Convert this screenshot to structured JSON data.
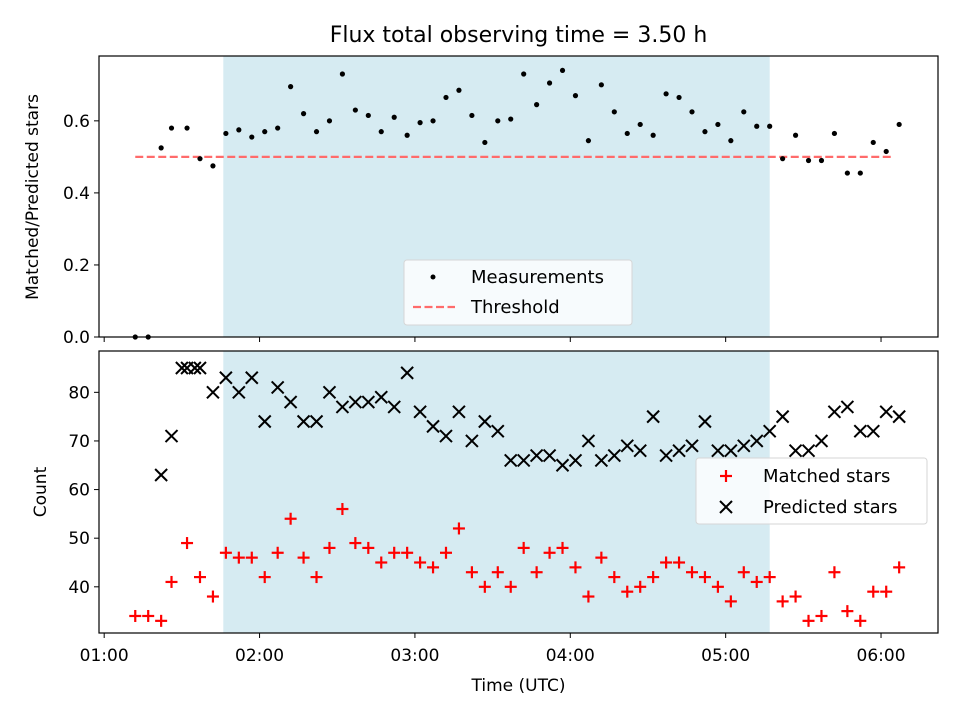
{
  "chart_data": [
    {
      "type": "scatter",
      "title": "Flux total observing time = 3.50 h",
      "ylabel": "Matched/Predicted stars",
      "xlabel": "",
      "xlim": [
        "00:58",
        "06:22"
      ],
      "ylim": [
        0,
        0.78
      ],
      "yticks": [
        "0.0",
        "0.2",
        "0.4",
        "0.6"
      ],
      "xticks": [
        "01:00",
        "02:00",
        "03:00",
        "04:00",
        "05:00",
        "06:00"
      ],
      "show_xtick_labels": false,
      "grid": false,
      "legend_position": "bottom-center",
      "shaded_interval": {
        "start": "01:46",
        "end": "05:17",
        "color": "#add8e6"
      },
      "threshold": {
        "name": "Threshold",
        "value": 0.5,
        "x_start": "01:12",
        "x_end": "06:05",
        "color": "#ff6b6b"
      },
      "series": [
        {
          "name": "Measurements",
          "color": "#000000",
          "marker": "dot",
          "x": [
            "01:12",
            "01:17",
            "01:22",
            "01:26",
            "01:32",
            "01:37",
            "01:42",
            "01:47",
            "01:52",
            "01:57",
            "02:02",
            "02:07",
            "02:12",
            "02:17",
            "02:22",
            "02:27",
            "02:32",
            "02:37",
            "02:42",
            "02:47",
            "02:52",
            "02:57",
            "03:02",
            "03:07",
            "03:12",
            "03:17",
            "03:22",
            "03:27",
            "03:32",
            "03:37",
            "03:42",
            "03:47",
            "03:52",
            "03:57",
            "04:02",
            "04:07",
            "04:12",
            "04:17",
            "04:22",
            "04:27",
            "04:32",
            "04:37",
            "04:42",
            "04:47",
            "04:52",
            "04:57",
            "05:02",
            "05:07",
            "05:12",
            "05:17",
            "05:22",
            "05:27",
            "05:32",
            "05:37",
            "05:42",
            "05:47",
            "05:52",
            "05:57",
            "06:02",
            "06:07"
          ],
          "y": [
            0.0,
            0.0,
            0.525,
            0.58,
            0.58,
            0.495,
            0.475,
            0.565,
            0.575,
            0.555,
            0.57,
            0.58,
            0.695,
            0.62,
            0.57,
            0.6,
            0.73,
            0.63,
            0.615,
            0.57,
            0.61,
            0.56,
            0.595,
            0.6,
            0.665,
            0.685,
            0.615,
            0.54,
            0.6,
            0.605,
            0.73,
            0.645,
            0.705,
            0.74,
            0.67,
            0.545,
            0.7,
            0.625,
            0.565,
            0.59,
            0.56,
            0.675,
            0.665,
            0.625,
            0.57,
            0.59,
            0.545,
            0.625,
            0.585,
            0.585,
            0.495,
            0.56,
            0.49,
            0.49,
            0.565,
            0.455,
            0.455,
            0.54,
            0.515,
            0.59
          ]
        }
      ]
    },
    {
      "type": "scatter",
      "title": "",
      "ylabel": "Count",
      "xlabel": "Time (UTC)",
      "xlim": [
        "00:58",
        "06:22"
      ],
      "ylim": [
        30.5,
        88.5
      ],
      "yticks": [
        "40",
        "50",
        "60",
        "70",
        "80"
      ],
      "xticks": [
        "01:00",
        "02:00",
        "03:00",
        "04:00",
        "05:00",
        "06:00"
      ],
      "show_xtick_labels": true,
      "grid": false,
      "legend_position": "center-right",
      "shaded_interval": {
        "start": "01:46",
        "end": "05:17",
        "color": "#add8e6"
      },
      "series": [
        {
          "name": "Matched stars",
          "color": "#ff0000",
          "marker": "plus",
          "x": [
            "01:12",
            "01:17",
            "01:22",
            "01:26",
            "01:32",
            "01:37",
            "01:42",
            "01:47",
            "01:52",
            "01:57",
            "02:02",
            "02:07",
            "02:12",
            "02:17",
            "02:22",
            "02:27",
            "02:32",
            "02:37",
            "02:42",
            "02:47",
            "02:52",
            "02:57",
            "03:02",
            "03:07",
            "03:12",
            "03:17",
            "03:22",
            "03:27",
            "03:32",
            "03:37",
            "03:42",
            "03:47",
            "03:52",
            "03:57",
            "04:02",
            "04:07",
            "04:12",
            "04:17",
            "04:22",
            "04:27",
            "04:32",
            "04:37",
            "04:42",
            "04:47",
            "04:52",
            "04:57",
            "05:02",
            "05:07",
            "05:12",
            "05:17",
            "05:22",
            "05:27",
            "05:32",
            "05:37",
            "05:42",
            "05:47",
            "05:52",
            "05:57",
            "06:02",
            "06:07"
          ],
          "y": [
            34,
            34,
            33,
            41,
            49,
            42,
            38,
            47,
            46,
            46,
            42,
            47,
            54,
            46,
            42,
            48,
            56,
            49,
            48,
            45,
            47,
            47,
            45,
            44,
            47,
            52,
            43,
            40,
            43,
            40,
            48,
            43,
            47,
            48,
            44,
            38,
            46,
            42,
            39,
            40,
            42,
            45,
            45,
            43,
            42,
            40,
            37,
            43,
            41,
            42,
            37,
            38,
            33,
            34,
            43,
            35,
            33,
            39,
            39,
            44
          ]
        },
        {
          "name": "Predicted stars",
          "color": "#000000",
          "marker": "x",
          "x": [
            "01:22",
            "01:26",
            "01:32",
            "01:37",
            "01:42",
            "01:47",
            "01:52",
            "01:57",
            "02:02",
            "02:07",
            "02:12",
            "02:17",
            "02:22",
            "02:27",
            "02:32",
            "02:37",
            "02:42",
            "02:47",
            "02:52",
            "02:57",
            "03:02",
            "03:07",
            "03:12",
            "03:17",
            "03:22",
            "03:27",
            "03:32",
            "03:37",
            "03:42",
            "03:47",
            "03:52",
            "03:57",
            "04:02",
            "04:07",
            "04:12",
            "04:17",
            "04:22",
            "04:27",
            "04:32",
            "04:37",
            "04:42",
            "04:47",
            "04:52",
            "04:57",
            "05:02",
            "05:07",
            "05:12",
            "05:17",
            "05:22",
            "05:27",
            "05:32",
            "05:37",
            "05:42",
            "05:47",
            "05:52",
            "05:57",
            "06:02",
            "06:07",
            "01:35",
            "01:30"
          ],
          "y": [
            63,
            71,
            85,
            85,
            80,
            83,
            80,
            83,
            74,
            81,
            78,
            74,
            74,
            80,
            77,
            78,
            78,
            79,
            77,
            84,
            76,
            73,
            71,
            76,
            70,
            74,
            72,
            66,
            66,
            67,
            67,
            65,
            66,
            70,
            66,
            67,
            69,
            68,
            75,
            67,
            68,
            69,
            74,
            68,
            68,
            69,
            70,
            72,
            75,
            68,
            68,
            70,
            76,
            77,
            72,
            72,
            76,
            75,
            85,
            85
          ]
        }
      ]
    }
  ]
}
